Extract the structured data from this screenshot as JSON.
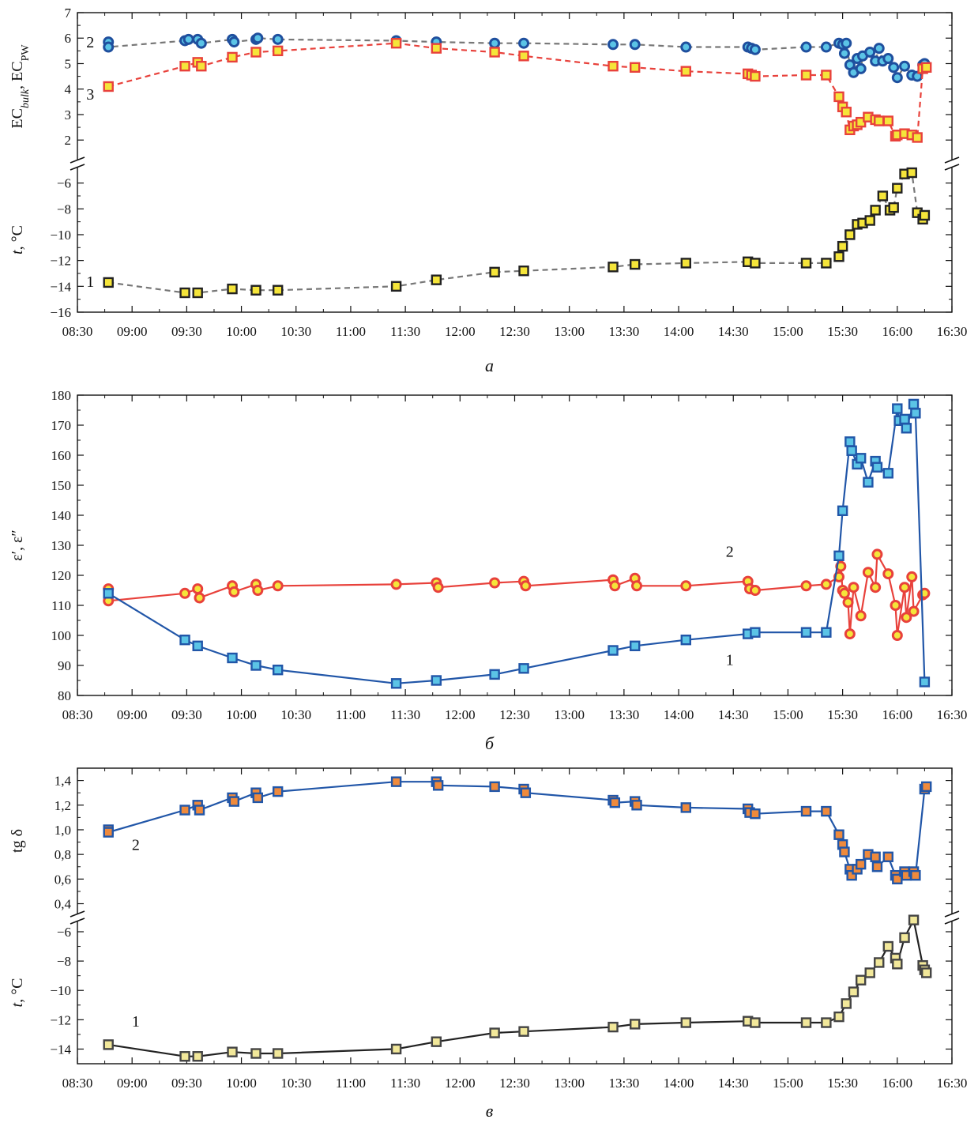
{
  "chart_data": [
    {
      "id": "a",
      "type": "scatter",
      "caption": "а",
      "x_ticks": [
        "08:30",
        "09:00",
        "09:30",
        "10:00",
        "10:30",
        "11:00",
        "11:30",
        "12:00",
        "12:30",
        "13:00",
        "13:30",
        "14:00",
        "14:30",
        "15:00",
        "15:30",
        "16:00",
        "16:30"
      ],
      "xlim": [
        "08:30",
        "16:30"
      ],
      "top_axis": {
        "ylabel": {
          "parts": [
            {
              "t": "EC"
            },
            {
              "t": "bulk",
              "sub": true,
              "it": true
            },
            {
              "t": ", EC"
            },
            {
              "t": "PW",
              "sub": true
            }
          ]
        },
        "ylim": [
          1.2,
          7
        ],
        "yticks": [
          2,
          3,
          4,
          5,
          6,
          7
        ]
      },
      "bottom_axis": {
        "ylabel": {
          "parts": [
            {
              "t": "t",
              "it": true
            },
            {
              "t": ", °C"
            }
          ]
        },
        "ylim": [
          -16,
          -4.8
        ],
        "yticks": [
          -6,
          -8,
          -10,
          -12,
          -14,
          -16
        ],
        "ytick_labels": [
          "−6",
          "−8",
          "−10",
          "−12",
          "−14",
          "−16"
        ]
      },
      "series": [
        {
          "label": "2",
          "axis": "top",
          "line": "dashed",
          "line_color": "#777777",
          "marker": "circle",
          "fill": "#5bc4e6",
          "edge": "#1f4f9e",
          "label_at": [
            "08:47",
            5.85
          ],
          "x": [
            "08:47",
            "08:47",
            "09:29",
            "09:31",
            "09:36",
            "09:38",
            "09:55",
            "09:56",
            "10:08",
            "10:09",
            "10:20",
            "11:25",
            "11:47",
            "12:19",
            "12:35",
            "13:24",
            "13:36",
            "14:04",
            "14:38",
            "14:40",
            "14:42",
            "15:10",
            "15:21",
            "15:28",
            "15:30",
            "15:31",
            "15:32",
            "15:34",
            "15:36",
            "15:38",
            "15:40",
            "15:41",
            "15:45",
            "15:48",
            "15:50",
            "15:52",
            "15:55",
            "15:58",
            "16:00",
            "16:04",
            "16:08",
            "16:11",
            "16:14",
            "16:15"
          ],
          "y": [
            5.85,
            5.65,
            5.9,
            5.95,
            5.95,
            5.8,
            5.95,
            5.85,
            5.95,
            6.0,
            5.95,
            5.9,
            5.85,
            5.8,
            5.8,
            5.75,
            5.75,
            5.65,
            5.65,
            5.6,
            5.55,
            5.65,
            5.65,
            5.8,
            5.75,
            5.4,
            5.8,
            4.95,
            4.65,
            5.2,
            4.8,
            5.3,
            5.45,
            5.1,
            5.6,
            5.1,
            5.2,
            4.85,
            4.45,
            4.9,
            4.55,
            4.5,
            4.95,
            5.0
          ]
        },
        {
          "label": "3",
          "axis": "top",
          "line": "dashed",
          "line_color": "#e8413b",
          "marker": "square",
          "fill": "#f5e53a",
          "edge": "#e8413b",
          "label_at": [
            "08:47",
            3.8
          ],
          "x": [
            "08:47",
            "09:29",
            "09:36",
            "09:38",
            "09:55",
            "10:08",
            "10:20",
            "11:25",
            "11:47",
            "12:19",
            "12:35",
            "13:24",
            "13:36",
            "14:04",
            "14:38",
            "14:40",
            "14:42",
            "15:10",
            "15:21",
            "15:28",
            "15:30",
            "15:32",
            "15:34",
            "15:36",
            "15:38",
            "15:40",
            "15:44",
            "15:48",
            "15:50",
            "15:55",
            "15:59",
            "16:00",
            "16:04",
            "16:08",
            "16:11",
            "16:14",
            "16:16"
          ],
          "y": [
            4.1,
            4.9,
            5.05,
            4.9,
            5.25,
            5.45,
            5.5,
            5.8,
            5.6,
            5.45,
            5.3,
            4.9,
            4.85,
            4.7,
            4.6,
            4.55,
            4.5,
            4.55,
            4.55,
            3.7,
            3.3,
            3.1,
            2.4,
            2.55,
            2.6,
            2.7,
            2.9,
            2.8,
            2.75,
            2.75,
            2.15,
            2.2,
            2.25,
            2.2,
            2.1,
            4.8,
            4.85
          ]
        },
        {
          "label": "1",
          "axis": "bottom",
          "line": "dashed",
          "line_color": "#777777",
          "marker": "square",
          "fill": "#f5e53a",
          "edge": "#222222",
          "label_at": [
            "08:47",
            -13.6
          ],
          "x": [
            "08:47",
            "09:29",
            "09:36",
            "09:55",
            "10:08",
            "10:20",
            "11:25",
            "11:47",
            "12:19",
            "12:35",
            "13:24",
            "13:36",
            "14:04",
            "14:38",
            "14:42",
            "15:10",
            "15:21",
            "15:28",
            "15:30",
            "15:34",
            "15:38",
            "15:41",
            "15:45",
            "15:48",
            "15:52",
            "15:56",
            "15:58",
            "16:00",
            "16:04",
            "16:08",
            "16:11",
            "16:14",
            "16:15"
          ],
          "y": [
            -13.7,
            -14.5,
            -14.5,
            -14.2,
            -14.3,
            -14.3,
            -14.0,
            -13.5,
            -12.9,
            -12.8,
            -12.5,
            -12.3,
            -12.2,
            -12.1,
            -12.2,
            -12.2,
            -12.2,
            -11.7,
            -10.9,
            -10.0,
            -9.2,
            -9.1,
            -8.9,
            -8.1,
            -7.0,
            -8.1,
            -7.9,
            -6.4,
            -5.3,
            -5.2,
            -8.3,
            -8.8,
            -8.5
          ]
        }
      ]
    },
    {
      "id": "b",
      "type": "line",
      "caption": "б",
      "x_ticks": [
        "08:30",
        "09:00",
        "09:30",
        "10:00",
        "10:30",
        "11:00",
        "11:30",
        "12:00",
        "12:30",
        "13:00",
        "13:30",
        "14:00",
        "14:30",
        "15:00",
        "15:30",
        "16:00",
        "16:30"
      ],
      "xlim": [
        "08:30",
        "16:30"
      ],
      "ylabel": "ε′, ε″",
      "ylim": [
        80,
        180
      ],
      "yticks": [
        80,
        90,
        100,
        110,
        120,
        130,
        140,
        150,
        160,
        170,
        180
      ],
      "series": [
        {
          "label": "2",
          "line": "solid",
          "line_color": "#e8413b",
          "marker": "circle",
          "fill": "#f5e53a",
          "edge": "#e8413b",
          "label_at": [
            "14:38",
            128
          ],
          "x": [
            "08:47",
            "08:47",
            "09:29",
            "09:36",
            "09:37",
            "09:55",
            "09:56",
            "10:08",
            "10:09",
            "10:20",
            "11:25",
            "11:47",
            "11:48",
            "12:19",
            "12:35",
            "12:36",
            "13:24",
            "13:25",
            "13:36",
            "13:37",
            "14:04",
            "14:38",
            "14:39",
            "14:42",
            "15:10",
            "15:21",
            "15:28",
            "15:29",
            "15:30",
            "15:31",
            "15:33",
            "15:34",
            "15:36",
            "15:40",
            "15:44",
            "15:48",
            "15:49",
            "15:55",
            "15:59",
            "16:00",
            "16:04",
            "16:05",
            "16:08",
            "16:09",
            "16:14",
            "16:15"
          ],
          "y": [
            115.5,
            111.5,
            114.0,
            115.5,
            112.5,
            116.5,
            114.5,
            117.0,
            115.0,
            116.5,
            117.0,
            117.5,
            116.0,
            117.5,
            118.0,
            116.5,
            118.5,
            116.5,
            119.0,
            116.5,
            116.5,
            118.0,
            115.5,
            115.0,
            116.5,
            117.0,
            119.5,
            123.0,
            115.0,
            114.0,
            111.0,
            100.5,
            116.0,
            106.5,
            121.0,
            116.0,
            127.0,
            120.5,
            110.0,
            100.0,
            116.0,
            106.0,
            119.5,
            108.0,
            113.5,
            114.0
          ]
        },
        {
          "label": "1",
          "line": "solid",
          "line_color": "#2156a8",
          "marker": "square",
          "fill": "#5bc4e6",
          "edge": "#2156a8",
          "label_at": [
            "14:38",
            92
          ],
          "x": [
            "08:47",
            "09:29",
            "09:36",
            "09:55",
            "10:08",
            "10:20",
            "11:25",
            "11:47",
            "12:19",
            "12:35",
            "13:24",
            "13:36",
            "14:04",
            "14:38",
            "14:42",
            "15:10",
            "15:21",
            "15:28",
            "15:30",
            "15:34",
            "15:35",
            "15:38",
            "15:40",
            "15:44",
            "15:48",
            "15:49",
            "15:55",
            "16:00",
            "16:01",
            "16:04",
            "16:05",
            "16:09",
            "16:10",
            "16:15"
          ],
          "y": [
            114.0,
            98.5,
            96.5,
            92.5,
            90.0,
            88.5,
            84.0,
            85.0,
            87.0,
            89.0,
            95.0,
            96.5,
            98.5,
            100.5,
            101.0,
            101.0,
            101.0,
            126.5,
            141.5,
            164.5,
            161.5,
            157.0,
            159.0,
            151.0,
            158.0,
            156.0,
            154.0,
            175.5,
            171.5,
            172.0,
            169.0,
            177.0,
            174.0,
            84.5
          ]
        }
      ]
    },
    {
      "id": "c",
      "type": "line",
      "caption": "в",
      "x_ticks": [
        "08:30",
        "09:00",
        "09:30",
        "10:00",
        "10:30",
        "11:00",
        "11:30",
        "12:00",
        "12:30",
        "13:00",
        "13:30",
        "14:00",
        "14:30",
        "15:00",
        "15:30",
        "16:00",
        "16:30"
      ],
      "xlim": [
        "08:30",
        "16:30"
      ],
      "top_axis": {
        "ylabel": {
          "parts": [
            {
              "t": "tg δ"
            }
          ]
        },
        "ylim": [
          0.32,
          1.5
        ],
        "yticks": [
          0.4,
          0.6,
          0.8,
          1.0,
          1.2,
          1.4
        ],
        "ytick_labels": [
          "0,4",
          "0,6",
          "0,8",
          "1,0",
          "1,2",
          "1,4"
        ]
      },
      "bottom_axis": {
        "ylabel": {
          "parts": [
            {
              "t": "t",
              "it": true
            },
            {
              "t": ", °C"
            }
          ]
        },
        "ylim": [
          -15,
          -5.3
        ],
        "yticks": [
          -6,
          -8,
          -10,
          -12,
          -14
        ],
        "ytick_labels": [
          "−6",
          "−8",
          "−10",
          "−12",
          "−14"
        ]
      },
      "series": [
        {
          "label": "2",
          "axis": "top",
          "line": "solid",
          "line_color": "#2156a8",
          "marker": "square",
          "fill": "#ef8a3c",
          "edge": "#2156a8",
          "label_at": [
            "09:12",
            0.88
          ],
          "x": [
            "08:47",
            "08:47",
            "09:29",
            "09:36",
            "09:37",
            "09:55",
            "09:56",
            "10:08",
            "10:09",
            "10:20",
            "11:25",
            "11:47",
            "11:48",
            "12:19",
            "12:35",
            "12:36",
            "13:24",
            "13:25",
            "13:36",
            "13:37",
            "14:04",
            "14:38",
            "14:39",
            "14:42",
            "15:10",
            "15:21",
            "15:28",
            "15:30",
            "15:31",
            "15:34",
            "15:35",
            "15:38",
            "15:40",
            "15:44",
            "15:48",
            "15:49",
            "15:55",
            "15:59",
            "16:00",
            "16:04",
            "16:05",
            "16:09",
            "16:10",
            "16:15",
            "16:16"
          ],
          "y": [
            1.0,
            0.98,
            1.16,
            1.2,
            1.16,
            1.26,
            1.23,
            1.3,
            1.26,
            1.31,
            1.39,
            1.39,
            1.36,
            1.35,
            1.33,
            1.3,
            1.24,
            1.22,
            1.23,
            1.2,
            1.18,
            1.17,
            1.14,
            1.13,
            1.15,
            1.15,
            0.96,
            0.88,
            0.82,
            0.68,
            0.63,
            0.68,
            0.72,
            0.8,
            0.78,
            0.7,
            0.78,
            0.63,
            0.6,
            0.66,
            0.63,
            0.66,
            0.63,
            1.33,
            1.35
          ]
        },
        {
          "label": "1",
          "axis": "bottom",
          "line": "solid",
          "line_color": "#222222",
          "marker": "square",
          "fill": "#f2e89a",
          "edge": "#444444",
          "label_at": [
            "09:12",
            -12.1
          ],
          "x": [
            "08:47",
            "09:29",
            "09:36",
            "09:55",
            "10:08",
            "10:20",
            "11:25",
            "11:47",
            "12:19",
            "12:35",
            "13:24",
            "13:36",
            "14:04",
            "14:38",
            "14:42",
            "15:10",
            "15:21",
            "15:28",
            "15:32",
            "15:36",
            "15:40",
            "15:45",
            "15:50",
            "15:55",
            "15:59",
            "16:00",
            "16:04",
            "16:09",
            "16:14",
            "16:15",
            "16:16"
          ],
          "y": [
            -13.7,
            -14.5,
            -14.5,
            -14.2,
            -14.3,
            -14.3,
            -14.0,
            -13.5,
            -12.9,
            -12.8,
            -12.5,
            -12.3,
            -12.2,
            -12.1,
            -12.2,
            -12.2,
            -12.2,
            -11.8,
            -10.9,
            -10.1,
            -9.3,
            -8.8,
            -8.1,
            -7.0,
            -7.8,
            -8.2,
            -6.4,
            -5.2,
            -8.3,
            -8.6,
            -8.8
          ]
        }
      ]
    }
  ]
}
